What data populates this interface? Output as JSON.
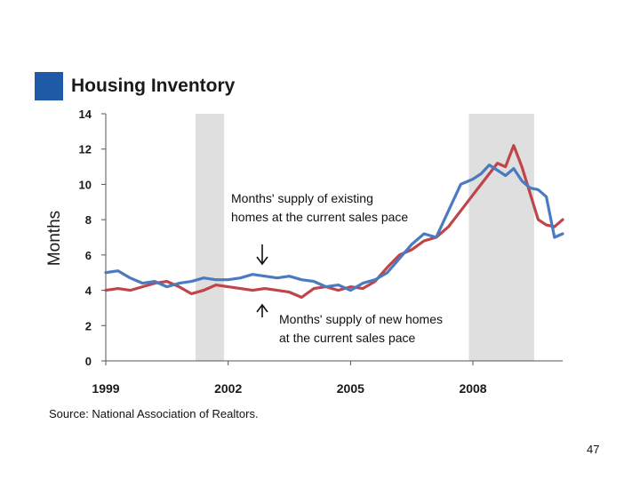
{
  "colors": {
    "title_square": "#1f5aa6",
    "existing": "#4a7bc0",
    "new": "#c0454a",
    "recession": "#d9d9d9",
    "arrow": "#111111"
  },
  "slide": {
    "page_number": "47"
  },
  "chart_data": {
    "type": "line",
    "title": "Housing Inventory",
    "ylabel": "Months",
    "xlabel": "",
    "xlim": [
      1999,
      2010.2
    ],
    "ylim": [
      0,
      14
    ],
    "y_ticks": [
      0,
      2,
      4,
      6,
      8,
      10,
      12,
      14
    ],
    "x_ticks": [
      1999,
      2002,
      2005,
      2008
    ],
    "x_tick_labels": [
      "1999",
      "2002",
      "2005",
      "2008"
    ],
    "y_tick_labels": [
      "0",
      "2",
      "4",
      "6",
      "8",
      "10",
      "12",
      "14"
    ],
    "recession_shading": [
      [
        2001.2,
        2001.9
      ],
      [
        2007.9,
        2009.5
      ]
    ],
    "annotations": [
      {
        "lines": [
          "Months' supply of existing",
          "homes at the current sales pace"
        ],
        "arrow_direction": "down"
      },
      {
        "lines": [
          "Months' supply of new homes",
          "at the current sales pace"
        ],
        "arrow_direction": "up"
      }
    ],
    "source": "Source: National Association of Realtors.",
    "series": [
      {
        "name": "Months' supply of existing homes",
        "x": [
          1999.0,
          1999.3,
          1999.6,
          1999.9,
          2000.2,
          2000.5,
          2000.8,
          2001.1,
          2001.4,
          2001.7,
          2002.0,
          2002.3,
          2002.6,
          2002.9,
          2003.2,
          2003.5,
          2003.8,
          2004.1,
          2004.4,
          2004.7,
          2005.0,
          2005.3,
          2005.6,
          2005.9,
          2006.2,
          2006.5,
          2006.8,
          2007.1,
          2007.4,
          2007.7,
          2008.0,
          2008.2,
          2008.4,
          2008.6,
          2008.8,
          2009.0,
          2009.2,
          2009.4,
          2009.6,
          2009.8,
          2010.0,
          2010.2
        ],
        "values": [
          5.0,
          5.1,
          4.7,
          4.4,
          4.5,
          4.2,
          4.4,
          4.5,
          4.7,
          4.6,
          4.6,
          4.7,
          4.9,
          4.8,
          4.7,
          4.8,
          4.6,
          4.5,
          4.2,
          4.3,
          4.0,
          4.4,
          4.6,
          5.0,
          5.8,
          6.6,
          7.2,
          7.0,
          8.5,
          10.0,
          10.3,
          10.6,
          11.1,
          10.8,
          10.5,
          10.9,
          10.2,
          9.8,
          9.7,
          9.3,
          7.0,
          7.2
        ]
      },
      {
        "name": "Months' supply of new homes",
        "x": [
          1999.0,
          1999.3,
          1999.6,
          1999.9,
          2000.2,
          2000.5,
          2000.8,
          2001.1,
          2001.4,
          2001.7,
          2002.0,
          2002.3,
          2002.6,
          2002.9,
          2003.2,
          2003.5,
          2003.8,
          2004.1,
          2004.4,
          2004.7,
          2005.0,
          2005.3,
          2005.6,
          2005.9,
          2006.2,
          2006.5,
          2006.8,
          2007.1,
          2007.4,
          2007.7,
          2008.0,
          2008.2,
          2008.4,
          2008.6,
          2008.8,
          2009.0,
          2009.2,
          2009.4,
          2009.6,
          2009.8,
          2010.0,
          2010.2
        ],
        "values": [
          4.0,
          4.1,
          4.0,
          4.2,
          4.4,
          4.5,
          4.2,
          3.8,
          4.0,
          4.3,
          4.2,
          4.1,
          4.0,
          4.1,
          4.0,
          3.9,
          3.6,
          4.1,
          4.2,
          4.0,
          4.2,
          4.1,
          4.5,
          5.3,
          6.0,
          6.3,
          6.8,
          7.0,
          7.6,
          8.5,
          9.4,
          10.0,
          10.6,
          11.2,
          11.0,
          12.2,
          11.0,
          9.5,
          8.0,
          7.7,
          7.6,
          8.0
        ]
      }
    ]
  }
}
